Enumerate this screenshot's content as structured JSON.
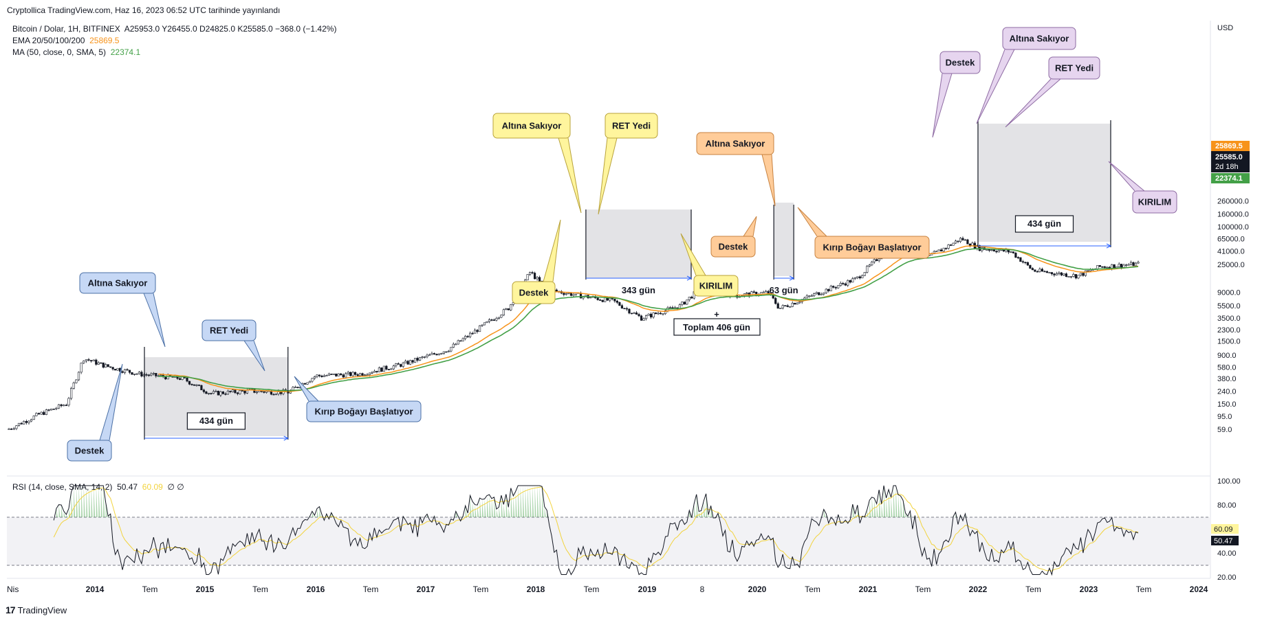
{
  "header": {
    "published": "Cryptollica TradingView.com, Haz 16, 2023 06:52 UTC tarihinde yayınlandı"
  },
  "legend": {
    "symbol": "Bitcoin / Dolar, 1H, BITFINEX",
    "ohlc": "A25953.0  Y26455.0  D24825.0  K25585.0  −368.0 (−1.42%)",
    "ema_label": "EMA 20/50/100/200",
    "ema_value": "25869.5",
    "ma_label": "MA (50, close, 0, SMA, 5)",
    "ma_value": "22374.1",
    "rsi_label": "RSI (14, close, SMA, 14, 2)",
    "rsi_value": "50.47",
    "rsi_ma_value": "60.09",
    "rsi_extra": "∅ ∅"
  },
  "footer": {
    "brand": "TradingView",
    "logo": "17"
  },
  "colors": {
    "candle": "#131722",
    "ema": "#f7931a",
    "ma": "#43a047",
    "blue_callout": "#c6d8f5",
    "yellow_callout": "#fff59d",
    "orange_callout": "#ffcc99",
    "purple_callout": "#e6d5ef"
  },
  "chart_data": {
    "type": "line",
    "title": "",
    "log_scale": true,
    "y_currency": "USD",
    "price_ticks": [
      "260000.0",
      "160000.0",
      "100000.0",
      "65000.0",
      "41000.0",
      "25000.0",
      "9000.0",
      "5500.0",
      "3500.0",
      "2300.0",
      "1500.0",
      "900.0",
      "580.0",
      "380.0",
      "240.0",
      "150.0",
      "95.0",
      "59.0"
    ],
    "rsi_ticks": [
      "100.00",
      "80.00",
      "60.00",
      "40.00",
      "20.00"
    ],
    "x_ticks": [
      "Nis",
      "2014",
      "Tem",
      "2015",
      "Tem",
      "2016",
      "Tem",
      "2017",
      "Tem",
      "2018",
      "Tem",
      "2019",
      "8",
      "2020",
      "Tem",
      "2021",
      "Tem",
      "2022",
      "Tem",
      "2023",
      "Tem",
      "2024"
    ],
    "price_badges": {
      "ema": "25869.5",
      "last": "25585.0",
      "countdown": "2d 18h",
      "ma": "22374.1"
    },
    "rsi_badges": {
      "ma": "60.09",
      "rsi": "50.47"
    },
    "series": [
      {
        "name": "Bitcoin / Dolar",
        "x": [
          2013.25,
          2013.5,
          2013.75,
          2013.9,
          2014.1,
          2014.4,
          2014.8,
          2015.05,
          2015.4,
          2015.75,
          2016.0,
          2016.4,
          2016.8,
          2017.2,
          2017.5,
          2017.75,
          2017.95,
          2018.1,
          2018.4,
          2018.7,
          2018.95,
          2019.3,
          2019.5,
          2019.8,
          2020.1,
          2020.2,
          2020.6,
          2020.9,
          2021.1,
          2021.3,
          2021.55,
          2021.85,
          2022.0,
          2022.3,
          2022.5,
          2022.9,
          2023.1,
          2023.45
        ],
        "y": [
          60,
          100,
          150,
          800,
          600,
          450,
          380,
          220,
          240,
          230,
          420,
          450,
          650,
          1100,
          2500,
          5000,
          19000,
          10000,
          8000,
          6500,
          3500,
          5500,
          11000,
          8000,
          9000,
          5000,
          9500,
          15000,
          33000,
          60000,
          33000,
          65000,
          46000,
          40000,
          20000,
          16500,
          23000,
          25585
        ]
      },
      {
        "name": "EMA 20/50/100/200"
      },
      {
        "name": "MA (50, close, 0, SMA, 5)"
      }
    ],
    "rsi_levels": {
      "upper": 70,
      "lower": 30
    },
    "annotations": {
      "blue": [
        "Altına Sakıyor",
        "RET Yedi",
        "Destek",
        "Kırıp Boğayı Başlatıyor",
        "434 gün"
      ],
      "yellow": [
        "Altına Sakıyor",
        "RET Yedi",
        "Destek",
        "KIRILIM",
        "343 gün"
      ],
      "orange": [
        "Altına Sakıyor",
        "Destek",
        "Kırıp Boğayı Başlatıyor",
        "63 gün"
      ],
      "total": [
        "+",
        "Toplam 406 gün"
      ],
      "purple": [
        "Destek",
        "Altına Sakıyor",
        "RET Yedi",
        "KIRILIM",
        "434 gün"
      ]
    }
  }
}
